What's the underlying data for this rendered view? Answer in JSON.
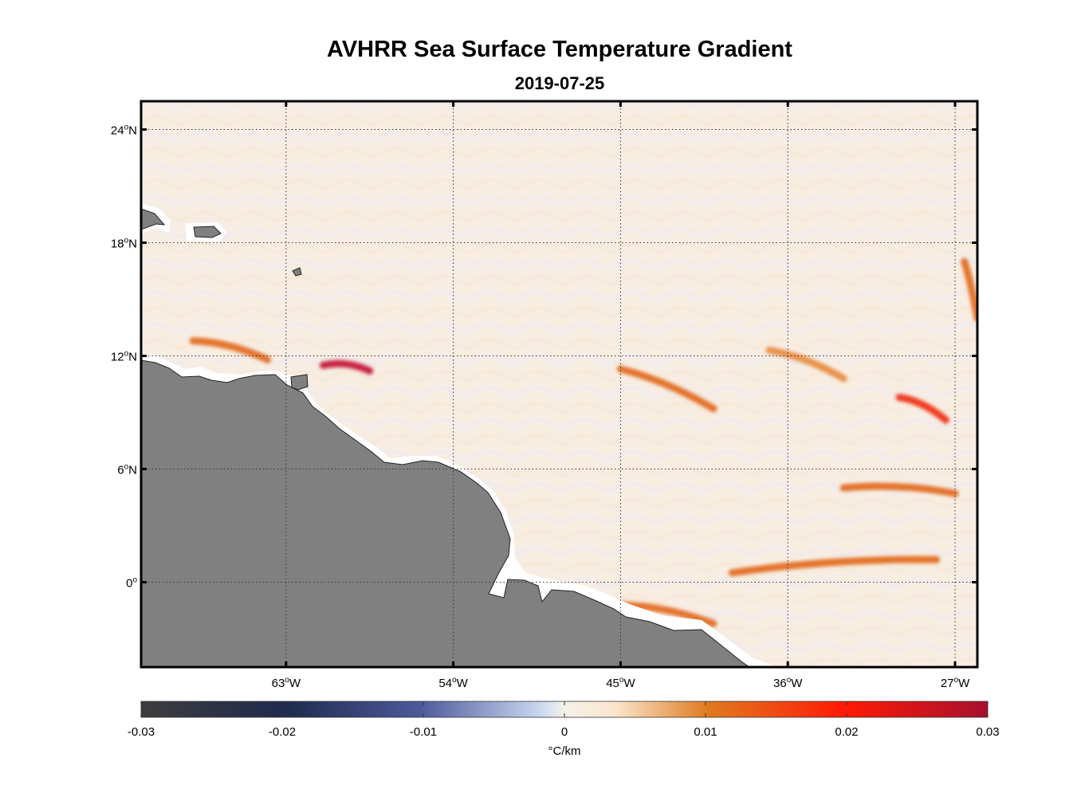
{
  "figure": {
    "title": "AVHRR Sea Surface Temperature Gradient",
    "subtitle": "2019-07-25"
  },
  "map": {
    "lon_range": [
      -70.8,
      -25.8
    ],
    "lat_range": [
      -4.5,
      25.5
    ],
    "land_color": "#808080",
    "coast_buffer_color": "#ffffff",
    "grid": "dotted",
    "lat_ticks": [
      {
        "deg": "24",
        "sup": "o",
        "hemi": "N",
        "value": 24
      },
      {
        "deg": "18",
        "sup": "o",
        "hemi": "N",
        "value": 18
      },
      {
        "deg": "12",
        "sup": "o",
        "hemi": "N",
        "value": 12
      },
      {
        "deg": "6",
        "sup": "o",
        "hemi": "N",
        "value": 6
      },
      {
        "deg": "0",
        "sup": "o",
        "hemi": "",
        "value": 0
      }
    ],
    "lon_ticks": [
      {
        "deg": "63",
        "sup": "o",
        "hemi": "W",
        "value": -63
      },
      {
        "deg": "54",
        "sup": "o",
        "hemi": "W",
        "value": -54
      },
      {
        "deg": "45",
        "sup": "o",
        "hemi": "W",
        "value": -45
      },
      {
        "deg": "36",
        "sup": "o",
        "hemi": "W",
        "value": -36
      },
      {
        "deg": "27",
        "sup": "o",
        "hemi": "W",
        "value": -27
      }
    ]
  },
  "colorbar": {
    "min": -0.03,
    "max": 0.03,
    "ticks": [
      "-0.03",
      "-0.02",
      "-0.01",
      "0",
      "0.01",
      "0.02",
      "0.03"
    ],
    "unit": "°C/km",
    "colors": [
      "#3d3d3d",
      "#1f2a4e",
      "#4d5a9a",
      "#c8d6ef",
      "#f6efe3",
      "#fbe6cc",
      "#e07a1f",
      "#ff1a05",
      "#a6102e"
    ]
  },
  "chart_data": {
    "type": "heatmap",
    "title": "AVHRR Sea Surface Temperature Gradient",
    "subtitle": "2019-07-25",
    "xlabel": "",
    "ylabel": "",
    "x_range_deg": [
      -70.8,
      -25.8
    ],
    "y_range_deg": [
      -4.5,
      25.5
    ],
    "value_range": [
      -0.03,
      0.03
    ],
    "colorbar_label": "°C/km",
    "fronts": [
      {
        "lon": [
          -61,
          -58.5
        ],
        "lat": [
          11.5,
          11.2
        ],
        "value": 0.028
      },
      {
        "lon": [
          -68,
          -64
        ],
        "lat": [
          12.8,
          11.8
        ],
        "value": 0.015
      },
      {
        "lon": [
          -45,
          -40
        ],
        "lat": [
          11.3,
          9.2
        ],
        "value": 0.017
      },
      {
        "lon": [
          -37,
          -33
        ],
        "lat": [
          12.3,
          10.8
        ],
        "value": 0.014
      },
      {
        "lon": [
          -30,
          -27.5
        ],
        "lat": [
          9.8,
          8.6
        ],
        "value": 0.02
      },
      {
        "lon": [
          -33,
          -27
        ],
        "lat": [
          5.0,
          4.7
        ],
        "value": 0.018
      },
      {
        "lon": [
          -39,
          -28
        ],
        "lat": [
          0.5,
          1.2
        ],
        "value": 0.016
      },
      {
        "lon": [
          -45,
          -40
        ],
        "lat": [
          -1.2,
          -2.2
        ],
        "value": 0.016
      },
      {
        "lon": [
          -26.5,
          -25.8
        ],
        "lat": [
          17,
          14
        ],
        "value": 0.016
      }
    ]
  }
}
